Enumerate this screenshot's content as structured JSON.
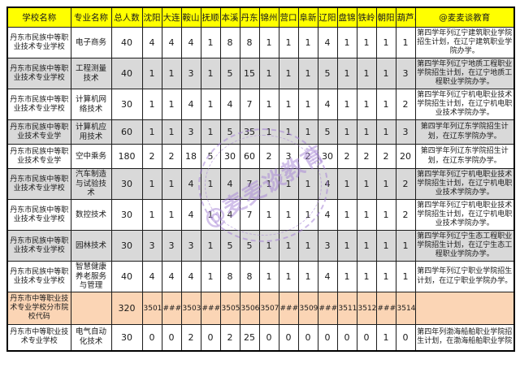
{
  "table": {
    "header": {
      "school": "学校名称",
      "major": "专业名称",
      "total": "总人数",
      "cities": [
        "沈阳",
        "大连",
        "鞍山",
        "抚顺",
        "本溪",
        "丹东",
        "锦州",
        "营口",
        "阜新",
        "辽阳",
        "盘锦",
        "铁岭",
        "朝阳",
        "葫芦岛"
      ],
      "note": "@麦麦谈教育"
    },
    "rows": [
      {
        "kind": "normal",
        "school": "丹东市民族中等职业技术专业学校",
        "major": "电子商务",
        "total": "40",
        "cities": [
          "4",
          "4",
          "4",
          "1",
          "8",
          "8",
          "1",
          "1",
          "1",
          "4",
          "1",
          "1",
          "1",
          "1"
        ],
        "note": "第四学年列辽宁建筑职业学院招生计划，在辽宁建筑职业学院办学。"
      },
      {
        "kind": "normal",
        "school": "丹东市民族中等职业技术专业学校",
        "major": "工程测量技术",
        "total": "40",
        "cities": [
          "1",
          "1",
          "3",
          "1",
          "5",
          "15",
          "1",
          "1",
          "1",
          "5",
          "1",
          "1",
          "1",
          "3"
        ],
        "note": "第四学年列辽宁地质工程职业学院招生计划，在辽宁地质工程职业学院办学。"
      },
      {
        "kind": "normal",
        "school": "丹东市民族中等职业技术专业学校",
        "major": "计算机网络技术",
        "total": "30",
        "cities": [
          "1",
          "1",
          "4",
          "1",
          "4",
          "7",
          "1",
          "1",
          "1",
          "4",
          "1",
          "1",
          "1",
          "2"
        ],
        "note": "第四学年列辽宁机电职业技术学院招生计划，在辽宁机电职业技术学院办学。"
      },
      {
        "kind": "normal",
        "school": "丹东市民族中等职业技术专业学",
        "major": "计算机应用技术",
        "total": "60",
        "cities": [
          "1",
          "1",
          "3",
          "1",
          "5",
          "35",
          "1",
          "1",
          "1",
          "5",
          "1",
          "1",
          "1",
          "3"
        ],
        "note": "第四学年列辽东学院招生计划，在辽东学院办学。"
      },
      {
        "kind": "normal",
        "school": "丹东市民族中等职业技术专业学",
        "major": "空中乘务",
        "total": "180",
        "cities": [
          "2",
          "2",
          "18",
          "5",
          "30",
          "60",
          "2",
          "3",
          "2",
          "30",
          "2",
          "2",
          "2",
          "20"
        ],
        "note": "第四学年列辽东学院招生计划，在辽东学院办学。"
      },
      {
        "kind": "normal",
        "school": "丹东市民族中等职业技术专业学校",
        "major": "汽车制造与试验技术",
        "total": "30",
        "cities": [
          "1",
          "1",
          "4",
          "1",
          "4",
          "7",
          "1",
          "1",
          "1",
          "4",
          "1",
          "1",
          "1",
          "2"
        ],
        "note": "第四学年列辽宁机电职业技术学院招生计划，在辽宁机电职业技术学院办学。"
      },
      {
        "kind": "normal",
        "school": "丹东市民族中等职业技术专业学校",
        "major": "数控技术",
        "total": "30",
        "cities": [
          "1",
          "1",
          "4",
          "1",
          "4",
          "7",
          "1",
          "1",
          "1",
          "4",
          "1",
          "1",
          "1",
          "2"
        ],
        "note": "第四学年列辽宁机电职业技术学院招生计划，在辽宁机电职业技术学院办学。"
      },
      {
        "kind": "normal",
        "school": "丹东市民族中等职业技术专业学校",
        "major": "园林技术",
        "total": "30",
        "cities": [
          "3",
          "3",
          "3",
          "1",
          "5",
          "5",
          "1",
          "1",
          "1",
          "3",
          "1",
          "1",
          "1",
          "1"
        ],
        "note": "第四学年列辽宁生态工程职业学院招生计划，在辽宁生态工程职业学院办学。"
      },
      {
        "kind": "normal",
        "school": "丹东市民族中等职业技术专业学校",
        "major": "智慧健康养老服务与管理",
        "total": "40",
        "cities": [
          "4",
          "4",
          "4",
          "1",
          "8",
          "8",
          "1",
          "1",
          "1",
          "4",
          "1",
          "1",
          "1",
          "1"
        ],
        "note": "第四学年列辽宁职业学院招生计划，在辽宁职业学院办学。"
      },
      {
        "kind": "summary",
        "school": "丹东市中等职业技术专业学校分市院校代码",
        "major": "",
        "total": "320",
        "cities": [
          "3501",
          "###",
          "3503",
          "###",
          "3505",
          "3506",
          "3507",
          "###",
          "3509",
          "###",
          "3511",
          "3512",
          "###",
          "3514"
        ],
        "note": ""
      },
      {
        "kind": "normal",
        "school": "丹东市中等职业技术专业学校",
        "major": "电气自动化技术",
        "total": "30",
        "cities": [
          "0",
          "0",
          "2",
          "0",
          "2",
          "25",
          "0",
          "0",
          "0",
          "0",
          "0",
          "0",
          "1",
          "0"
        ],
        "note": "第四年列渤海船舶职业学院招生计划，在渤海船舶职业学院"
      }
    ]
  },
  "watermark": {
    "text": "@麦麦谈教育"
  },
  "colors": {
    "header_bg": "#ffff00",
    "stripe_bg": "#d9d9d9",
    "summary_bg": "#fbd5b5",
    "total_red": "#e53935",
    "watermark_purple": "#a684d6",
    "border": "#1c1c1c"
  }
}
